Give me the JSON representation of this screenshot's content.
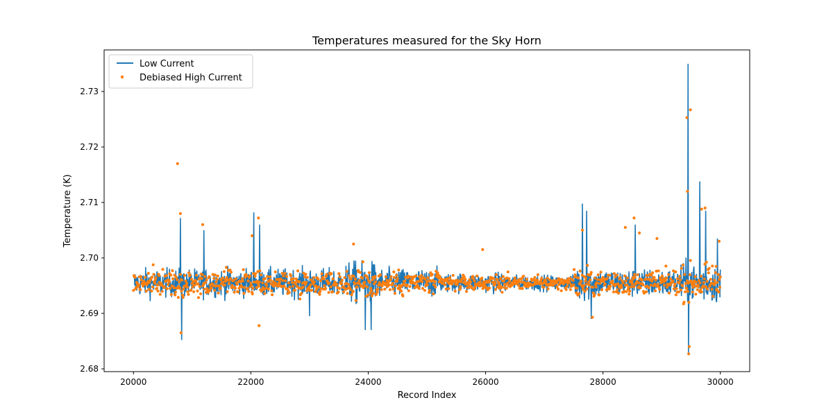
{
  "chart_data": {
    "type": "line",
    "title": "Temperatures measured for the Sky Horn",
    "xlabel": "Record Index",
    "ylabel": "Temperature (K)",
    "xlim": [
      19500,
      30500
    ],
    "ylim": [
      2.6795,
      2.7375
    ],
    "xticks": [
      20000,
      22000,
      24000,
      26000,
      28000,
      30000
    ],
    "yticks": [
      2.68,
      2.69,
      2.7,
      2.71,
      2.72,
      2.73
    ],
    "legend": "top-left",
    "series": [
      {
        "name": "Low Current",
        "kind": "line",
        "color": "#1f77b4",
        "baseline": 2.6955,
        "noise": 0.0018,
        "x_range": [
          20000,
          30000
        ],
        "spikes": [
          {
            "x": 20800,
            "y": 2.7072
          },
          {
            "x": 20820,
            "y": 2.6852
          },
          {
            "x": 21200,
            "y": 2.705
          },
          {
            "x": 22050,
            "y": 2.7082
          },
          {
            "x": 22150,
            "y": 2.706
          },
          {
            "x": 23000,
            "y": 2.6895
          },
          {
            "x": 23950,
            "y": 2.687
          },
          {
            "x": 24050,
            "y": 2.687
          },
          {
            "x": 27650,
            "y": 2.7098
          },
          {
            "x": 27720,
            "y": 2.7085
          },
          {
            "x": 27800,
            "y": 2.689
          },
          {
            "x": 28550,
            "y": 2.706
          },
          {
            "x": 29450,
            "y": 2.735
          },
          {
            "x": 29460,
            "y": 2.6825
          },
          {
            "x": 29650,
            "y": 2.7138
          },
          {
            "x": 29750,
            "y": 2.7085
          },
          {
            "x": 29950,
            "y": 2.7035
          }
        ]
      },
      {
        "name": "Debiased High Current",
        "kind": "scatter",
        "color": "#ff7f0e",
        "baseline": 2.6955,
        "noise": 0.0015,
        "x_range": [
          20000,
          30000
        ],
        "outliers": [
          {
            "x": 20750,
            "y": 2.717
          },
          {
            "x": 20800,
            "y": 2.708
          },
          {
            "x": 20810,
            "y": 2.6865
          },
          {
            "x": 21180,
            "y": 2.706
          },
          {
            "x": 22020,
            "y": 2.704
          },
          {
            "x": 22130,
            "y": 2.7072
          },
          {
            "x": 22140,
            "y": 2.6878
          },
          {
            "x": 23750,
            "y": 2.7025
          },
          {
            "x": 25950,
            "y": 2.7015
          },
          {
            "x": 27650,
            "y": 2.705
          },
          {
            "x": 27820,
            "y": 2.6893
          },
          {
            "x": 28380,
            "y": 2.7055
          },
          {
            "x": 28530,
            "y": 2.7072
          },
          {
            "x": 28620,
            "y": 2.7045
          },
          {
            "x": 28920,
            "y": 2.7035
          },
          {
            "x": 29430,
            "y": 2.7253
          },
          {
            "x": 29490,
            "y": 2.7267
          },
          {
            "x": 29440,
            "y": 2.712
          },
          {
            "x": 29460,
            "y": 2.6827
          },
          {
            "x": 29470,
            "y": 2.684
          },
          {
            "x": 29680,
            "y": 2.7088
          },
          {
            "x": 29740,
            "y": 2.709
          },
          {
            "x": 29980,
            "y": 2.703
          }
        ]
      }
    ]
  }
}
